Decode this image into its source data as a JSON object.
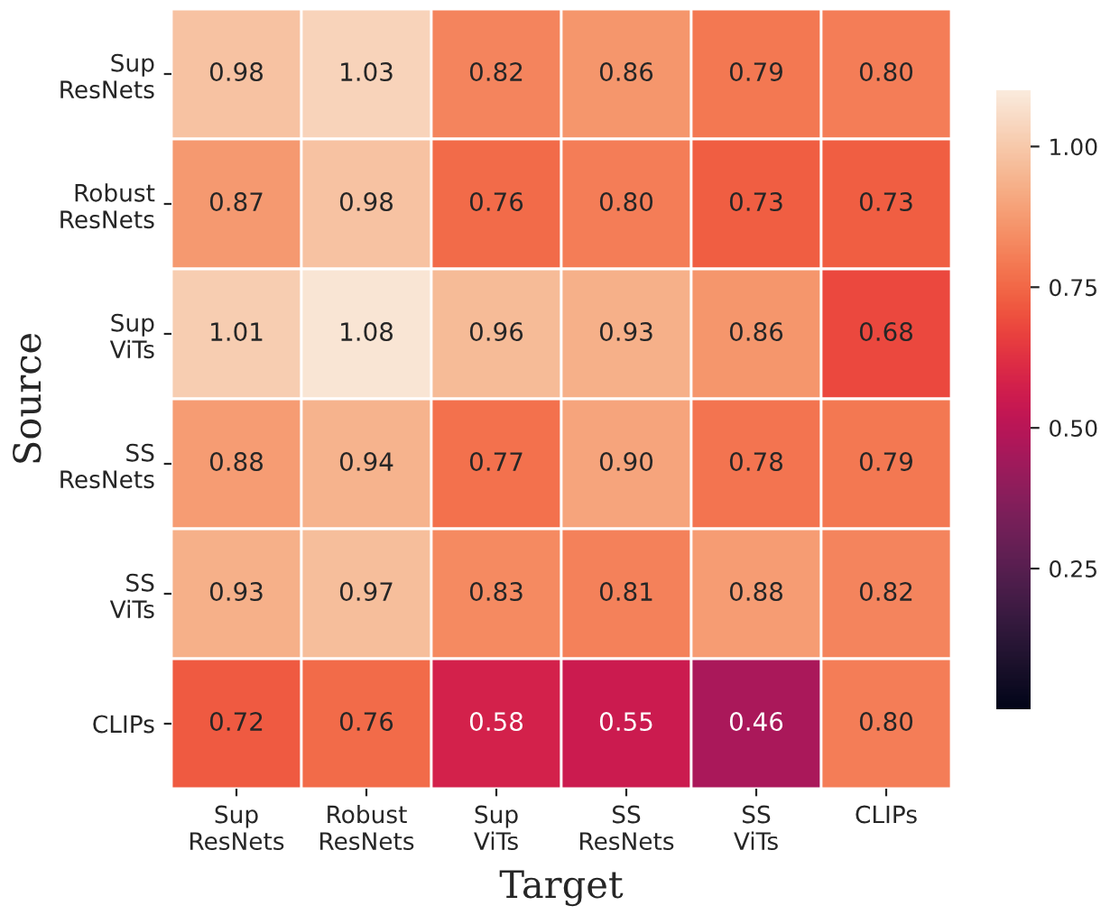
{
  "chart_data": {
    "type": "heatmap",
    "xlabel": "Target",
    "ylabel": "Source",
    "categories": [
      "Sup\nResNets",
      "Robust\nResNets",
      "Sup\nViTs",
      "SS\nResNets",
      "SS\nViTs",
      "CLIPs"
    ],
    "y_categories": [
      "Sup\nResNets",
      "Robust\nResNets",
      "Sup\nViTs",
      "SS\nResNets",
      "SS\nViTs",
      "CLIPs"
    ],
    "cells": [
      [
        0.98,
        1.03,
        0.82,
        0.86,
        0.79,
        0.8
      ],
      [
        0.87,
        0.98,
        0.76,
        0.8,
        0.73,
        0.73
      ],
      [
        1.01,
        1.08,
        0.96,
        0.93,
        0.86,
        0.68
      ],
      [
        0.88,
        0.94,
        0.77,
        0.9,
        0.78,
        0.79
      ],
      [
        0.93,
        0.97,
        0.83,
        0.81,
        0.88,
        0.82
      ],
      [
        0.72,
        0.76,
        0.58,
        0.55,
        0.46,
        0.8
      ]
    ],
    "cell_labels": [
      [
        "0.98",
        "1.03",
        "0.82",
        "0.86",
        "0.79",
        "0.80"
      ],
      [
        "0.87",
        "0.98",
        "0.76",
        "0.80",
        "0.73",
        "0.73"
      ],
      [
        "1.01",
        "1.08",
        "0.96",
        "0.93",
        "0.86",
        "0.68"
      ],
      [
        "0.88",
        "0.94",
        "0.77",
        "0.90",
        "0.78",
        "0.79"
      ],
      [
        "0.93",
        "0.97",
        "0.83",
        "0.81",
        "0.88",
        "0.82"
      ],
      [
        "0.72",
        "0.76",
        "0.58",
        "0.55",
        "0.46",
        "0.80"
      ]
    ],
    "clim": [
      0,
      1.1
    ],
    "cticks": [
      0.25,
      {
        "value": 0.5,
        "label": "0.50"
      },
      0.75,
      {
        "value": 1.0,
        "label": "1.00"
      }
    ]
  }
}
